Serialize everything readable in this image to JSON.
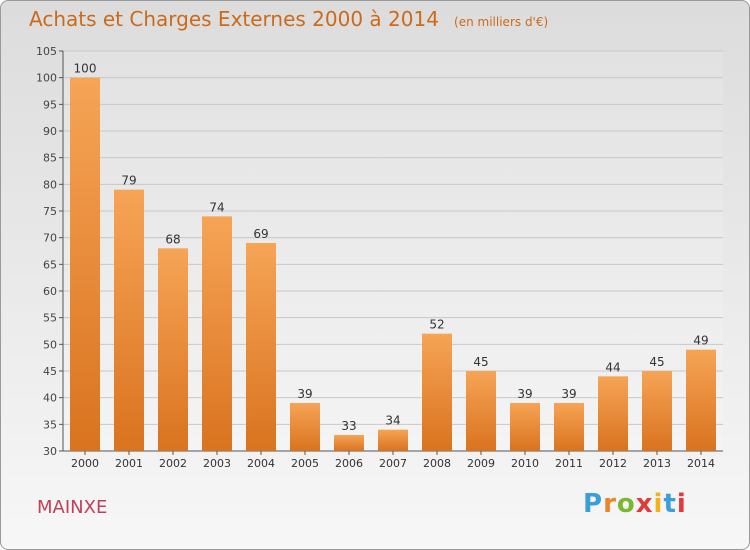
{
  "header": {
    "title": "Achats et Charges Externes 2000 à 2014",
    "unit": "(en milliers d'€)"
  },
  "footer": {
    "location": "MAINXE",
    "brand": "Proxiti",
    "brand_letters": [
      "P",
      "r",
      "o",
      "x",
      "i",
      "t",
      "i"
    ],
    "brand_colors": [
      "#3a9fd8",
      "#e8862a",
      "#7cb82f",
      "#e03a3a",
      "#f2b21a",
      "#3a9fd8",
      "#e03a3a"
    ]
  },
  "colors": {
    "bar_top": "#f6a456",
    "bar_bottom": "#d9731f",
    "title": "#cc6a1a",
    "grid": "#c8c8c8"
  },
  "chart_data": {
    "type": "bar",
    "categories": [
      "2000",
      "2001",
      "2002",
      "2003",
      "2004",
      "2005",
      "2006",
      "2007",
      "2008",
      "2009",
      "2010",
      "2011",
      "2012",
      "2013",
      "2014"
    ],
    "values": [
      100,
      79,
      68,
      74,
      69,
      39,
      33,
      34,
      52,
      45,
      39,
      39,
      44,
      45,
      49
    ],
    "ylim": [
      30,
      105
    ],
    "yticks": [
      30,
      35,
      40,
      45,
      50,
      55,
      60,
      65,
      70,
      75,
      80,
      85,
      90,
      95,
      100,
      105
    ],
    "grid": true,
    "data_labels": true
  }
}
